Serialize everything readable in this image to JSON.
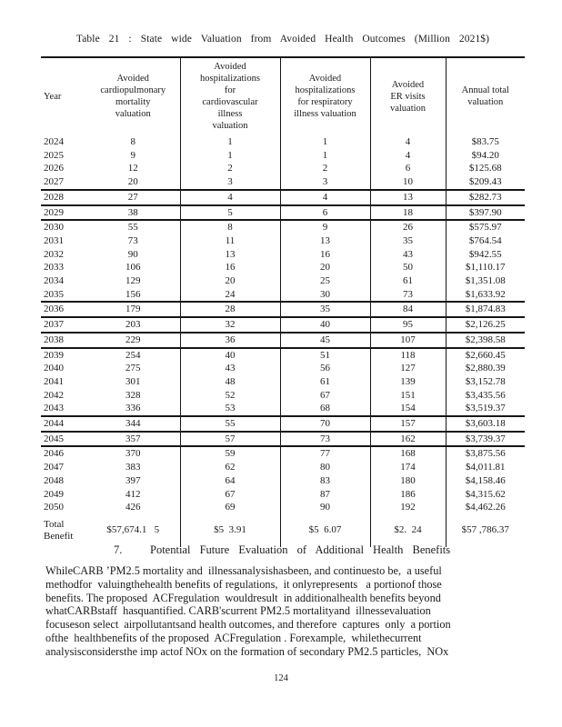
{
  "table": {
    "title": "Table 21 : State wide Valuation from Avoided Health Outcomes (Million 2021$)",
    "columns": [
      "Year",
      "Avoided\ncardiopulmonary\nmortality\nvaluation",
      "Avoided\nhospitalizations\nfor\ncardiovascular\nillness\nvaluation",
      "Avoided\nhospitalizations\nfor respiratory\nillness  valuation",
      "Avoided\nER visits\nvaluation",
      "Annual total\nvaluation"
    ],
    "rows": [
      [
        "2024",
        "8",
        "1",
        "1",
        "4",
        "$83.75"
      ],
      [
        "2025",
        "9",
        "1",
        "1",
        "4",
        "$94.20"
      ],
      [
        "2026",
        "12",
        "2",
        "2",
        "6",
        "$125.68"
      ],
      [
        "2027",
        "20",
        "3",
        "3",
        "10",
        "$209.43"
      ],
      [
        "2028",
        "27",
        "4",
        "4",
        "13",
        "$282.73"
      ],
      [
        "2029",
        "38",
        "5",
        "6",
        "18",
        "$397.90"
      ],
      [
        "2030",
        "55",
        "8",
        "9",
        "26",
        "$575.97"
      ],
      [
        "2031",
        "73",
        "11",
        "13",
        "35",
        "$764.54"
      ],
      [
        "2032",
        "90",
        "13",
        "16",
        "43",
        "$942.55"
      ],
      [
        "2033",
        "106",
        "16",
        "20",
        "50",
        "$1,110.17"
      ],
      [
        "2034",
        "129",
        "20",
        "25",
        "61",
        "$1,351.08"
      ],
      [
        "2035",
        "156",
        "24",
        "30",
        "73",
        "$1,633.92"
      ],
      [
        "2036",
        "179",
        "28",
        "35",
        "84",
        "$1,874.83"
      ],
      [
        "2037",
        "203",
        "32",
        "40",
        "95",
        "$2,126.25"
      ],
      [
        "2038",
        "229",
        "36",
        "45",
        "107",
        "$2,398.58"
      ],
      [
        "2039",
        "254",
        "40",
        "51",
        "118",
        "$2,660.45"
      ],
      [
        "2040",
        "275",
        "43",
        "56",
        "127",
        "$2,880.39"
      ],
      [
        "2041",
        "301",
        "48",
        "61",
        "139",
        "$3,152.78"
      ],
      [
        "2042",
        "328",
        "52",
        "67",
        "151",
        "$3,435.56"
      ],
      [
        "2043",
        "336",
        "53",
        "68",
        "154",
        "$3,519.37"
      ],
      [
        "2044",
        "344",
        "55",
        "70",
        "157",
        "$3,603.18"
      ],
      [
        "2045",
        "357",
        "57",
        "73",
        "162",
        "$3,739.37"
      ],
      [
        "2046",
        "370",
        "59",
        "77",
        "168",
        "$3,875.56"
      ],
      [
        "2047",
        "383",
        "62",
        "80",
        "174",
        "$4,011.81"
      ],
      [
        "2048",
        "397",
        "64",
        "83",
        "180",
        "$4,158.46"
      ],
      [
        "2049",
        "412",
        "67",
        "87",
        "186",
        "$4,315.62"
      ],
      [
        "2050",
        "426",
        "69",
        "90",
        "192",
        "$4,462.26"
      ]
    ],
    "total_row": [
      "Total Benefit",
      "$57,674.1   5",
      "$5  3.91",
      "$5  6.07",
      "$2.  24",
      "$57 ,786.37"
    ],
    "rows_with_top_border": [
      4,
      5,
      6,
      12,
      13,
      14,
      15,
      20,
      21,
      22
    ]
  },
  "section": {
    "number": "7.",
    "heading": "Potential Future Evaluation of Additional Health Benefits"
  },
  "paragraph_lines": [
    "WhileCARB ʼPM2.5 mortality and  illnessanalysishasbeen, and continuesto be,  a useful",
    "methodfor  valuingthehealth benefits of regulations,  it onlyrepresents   a portionof those",
    "benefits. The proposed  ACFregulation  wouldresult  in additionalhealth benefits beyond",
    "whatCARBstaff  hasquantified. CARB'scurrent PM2.5 mortalityand  illnessevaluation",
    "focuseson select  airpollutantsand health outcomes, and therefore  captures  only  a portion",
    "ofthe  healthbenefits of the proposed  ACFregulation . Forexample,  whilethecurrent",
    "analysisconsidersthe imp actof NOx on the formation of secondary PM2.5 particles,  NOx"
  ],
  "page": {
    "number": "124"
  }
}
